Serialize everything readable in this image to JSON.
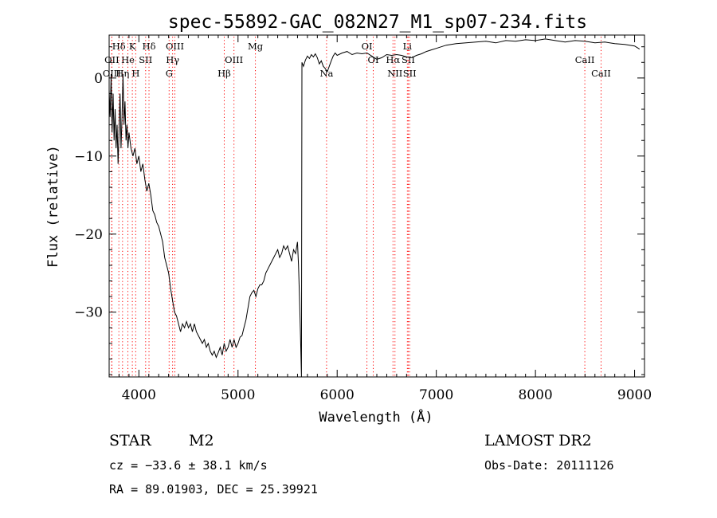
{
  "chart_data": {
    "type": "line",
    "title": "spec-55892-GAC_082N27_M1_sp07-234.fits",
    "xlabel": "Wavelength (Å)",
    "ylabel": "Flux (relative)",
    "xlim": [
      3700,
      9100
    ],
    "ylim": [
      -38.3,
      5.5
    ],
    "x_ticks": [
      4000,
      5000,
      6000,
      7000,
      8000,
      9000
    ],
    "x_tick_labels": [
      "4000",
      "5000",
      "6000",
      "7000",
      "8000",
      "9000"
    ],
    "y_ticks": [
      0,
      -10,
      -20,
      -30
    ],
    "y_tick_labels": [
      "0",
      "−10",
      "−20",
      "−30"
    ],
    "grid": false,
    "legend": "none",
    "series": [
      {
        "color": "#000000",
        "points": [
          [
            3700,
            -1.5
          ],
          [
            3710,
            -5
          ],
          [
            3720,
            0.5
          ],
          [
            3730,
            -7
          ],
          [
            3740,
            -2
          ],
          [
            3750,
            -8
          ],
          [
            3760,
            -4
          ],
          [
            3770,
            -9
          ],
          [
            3780,
            -6
          ],
          [
            3790,
            -11
          ],
          [
            3800,
            -7
          ],
          [
            3810,
            -2
          ],
          [
            3820,
            -9
          ],
          [
            3830,
            -5
          ],
          [
            3840,
            0.5
          ],
          [
            3850,
            -6
          ],
          [
            3860,
            -3
          ],
          [
            3870,
            -8
          ],
          [
            3880,
            -6
          ],
          [
            3890,
            -9
          ],
          [
            3900,
            -7
          ],
          [
            3920,
            -9
          ],
          [
            3940,
            -10
          ],
          [
            3960,
            -9
          ],
          [
            3980,
            -11
          ],
          [
            4000,
            -10
          ],
          [
            4020,
            -12
          ],
          [
            4040,
            -11
          ],
          [
            4060,
            -13
          ],
          [
            4080,
            -14.5
          ],
          [
            4100,
            -13.5
          ],
          [
            4120,
            -15
          ],
          [
            4140,
            -17
          ],
          [
            4160,
            -17.5
          ],
          [
            4180,
            -18.5
          ],
          [
            4200,
            -19
          ],
          [
            4220,
            -20
          ],
          [
            4240,
            -21
          ],
          [
            4260,
            -23
          ],
          [
            4280,
            -24
          ],
          [
            4300,
            -25
          ],
          [
            4320,
            -27
          ],
          [
            4340,
            -28.5
          ],
          [
            4360,
            -30
          ],
          [
            4380,
            -30.5
          ],
          [
            4400,
            -31.5
          ],
          [
            4420,
            -32.5
          ],
          [
            4440,
            -31.5
          ],
          [
            4460,
            -32
          ],
          [
            4480,
            -31.2
          ],
          [
            4500,
            -32
          ],
          [
            4520,
            -31.5
          ],
          [
            4540,
            -32.5
          ],
          [
            4560,
            -31.5
          ],
          [
            4580,
            -32.5
          ],
          [
            4600,
            -33
          ],
          [
            4620,
            -33.5
          ],
          [
            4640,
            -34
          ],
          [
            4660,
            -33.5
          ],
          [
            4680,
            -34.5
          ],
          [
            4700,
            -34
          ],
          [
            4720,
            -35
          ],
          [
            4740,
            -35.5
          ],
          [
            4760,
            -35
          ],
          [
            4780,
            -35.8
          ],
          [
            4800,
            -35.2
          ],
          [
            4820,
            -34.5
          ],
          [
            4840,
            -35.5
          ],
          [
            4860,
            -34
          ],
          [
            4880,
            -35
          ],
          [
            4900,
            -34.5
          ],
          [
            4920,
            -33.5
          ],
          [
            4940,
            -34.5
          ],
          [
            4960,
            -33.5
          ],
          [
            4980,
            -34.5
          ],
          [
            5000,
            -34
          ],
          [
            5020,
            -33.2
          ],
          [
            5040,
            -33
          ],
          [
            5060,
            -32
          ],
          [
            5080,
            -31
          ],
          [
            5100,
            -29.5
          ],
          [
            5120,
            -28
          ],
          [
            5140,
            -27.5
          ],
          [
            5160,
            -27.2
          ],
          [
            5180,
            -28
          ],
          [
            5200,
            -27
          ],
          [
            5220,
            -26.5
          ],
          [
            5240,
            -26.5
          ],
          [
            5260,
            -26
          ],
          [
            5280,
            -25
          ],
          [
            5300,
            -24.5
          ],
          [
            5320,
            -24
          ],
          [
            5340,
            -23.5
          ],
          [
            5360,
            -23
          ],
          [
            5380,
            -22.5
          ],
          [
            5400,
            -22
          ],
          [
            5420,
            -23
          ],
          [
            5440,
            -22.5
          ],
          [
            5460,
            -21.5
          ],
          [
            5480,
            -22
          ],
          [
            5500,
            -21.5
          ],
          [
            5520,
            -22.5
          ],
          [
            5540,
            -23.5
          ],
          [
            5560,
            -22
          ],
          [
            5580,
            -22.5
          ],
          [
            5600,
            -21
          ],
          [
            5610,
            -24
          ],
          [
            5620,
            -28
          ],
          [
            5630,
            -33
          ],
          [
            5640,
            -38.3
          ],
          [
            5645,
            2
          ],
          [
            5660,
            1.5
          ],
          [
            5680,
            2.3
          ],
          [
            5700,
            2.8
          ],
          [
            5720,
            2.5
          ],
          [
            5740,
            3
          ],
          [
            5760,
            2.7
          ],
          [
            5780,
            3.1
          ],
          [
            5800,
            2.6
          ],
          [
            5820,
            1.8
          ],
          [
            5840,
            2.2
          ],
          [
            5860,
            1.5
          ],
          [
            5880,
            1.2
          ],
          [
            5900,
            0.8
          ],
          [
            5920,
            1.5
          ],
          [
            5940,
            2.2
          ],
          [
            5960,
            2.8
          ],
          [
            5980,
            3.2
          ],
          [
            6000,
            2.9
          ],
          [
            6050,
            3.2
          ],
          [
            6100,
            3.4
          ],
          [
            6150,
            3.0
          ],
          [
            6200,
            3.2
          ],
          [
            6250,
            3.1
          ],
          [
            6300,
            3.2
          ],
          [
            6350,
            2.8
          ],
          [
            6400,
            2.4
          ],
          [
            6450,
            2.6
          ],
          [
            6500,
            3.0
          ],
          [
            6550,
            2.9
          ],
          [
            6600,
            3.0
          ],
          [
            6650,
            2.9
          ],
          [
            6700,
            2.7
          ],
          [
            6750,
            2.6
          ],
          [
            6800,
            2.9
          ],
          [
            6850,
            3.1
          ],
          [
            6900,
            3.4
          ],
          [
            6950,
            3.6
          ],
          [
            7000,
            3.8
          ],
          [
            7100,
            4.2
          ],
          [
            7200,
            4.4
          ],
          [
            7300,
            4.5
          ],
          [
            7400,
            4.6
          ],
          [
            7500,
            4.7
          ],
          [
            7600,
            4.5
          ],
          [
            7700,
            4.8
          ],
          [
            7800,
            4.7
          ],
          [
            7900,
            4.9
          ],
          [
            8000,
            4.8
          ],
          [
            8100,
            5.0
          ],
          [
            8200,
            4.8
          ],
          [
            8300,
            4.6
          ],
          [
            8400,
            4.8
          ],
          [
            8500,
            4.7
          ],
          [
            8600,
            4.5
          ],
          [
            8700,
            4.6
          ],
          [
            8800,
            4.4
          ],
          [
            8900,
            4.3
          ],
          [
            9000,
            4.1
          ],
          [
            9050,
            3.7
          ]
        ]
      }
    ],
    "line_markers": [
      {
        "label": "Hδ",
        "wavelength": 3798,
        "row": 1,
        "color": "#ff0000"
      },
      {
        "label": "K",
        "wavelength": 3934,
        "row": 1,
        "color": "#ff0000"
      },
      {
        "label": "Hδ",
        "wavelength": 4102,
        "row": 1,
        "color": "#ff0000"
      },
      {
        "label": "OIII",
        "wavelength": 4363,
        "row": 1,
        "color": "#ff0000"
      },
      {
        "label": "Mg",
        "wavelength": 5175,
        "row": 1,
        "color": "#ff0000"
      },
      {
        "label": "OI",
        "wavelength": 6300,
        "row": 1,
        "color": "#ff0000"
      },
      {
        "label": "Li",
        "wavelength": 6708,
        "row": 1,
        "color": "#ff0000"
      },
      {
        "label": "OII",
        "wavelength": 3727,
        "row": 2,
        "color": "#ff0000"
      },
      {
        "label": "He",
        "wavelength": 3889,
        "row": 2,
        "color": "#ff0000"
      },
      {
        "label": "SII",
        "wavelength": 4068,
        "row": 2,
        "color": "#ff0000"
      },
      {
        "label": "Hγ",
        "wavelength": 4340,
        "row": 2,
        "color": "#ff0000"
      },
      {
        "label": "OIII",
        "wavelength": 4959,
        "row": 2,
        "color": "#ff0000"
      },
      {
        "label": "OI",
        "wavelength": 6364,
        "row": 2,
        "color": "#ff0000"
      },
      {
        "label": "Hα",
        "wavelength": 6563,
        "row": 2,
        "color": "#ff0000"
      },
      {
        "label": "SII",
        "wavelength": 6717,
        "row": 2,
        "color": "#ff0000"
      },
      {
        "label": "CaII",
        "wavelength": 8498,
        "row": 2,
        "color": "#ff0000"
      },
      {
        "label": "OIII",
        "wavelength": 3727,
        "row": 3,
        "color": "#ff0000"
      },
      {
        "label": "Hη",
        "wavelength": 3835,
        "row": 3,
        "color": "#ff0000"
      },
      {
        "label": "H",
        "wavelength": 3968,
        "row": 3,
        "color": "#ff0000"
      },
      {
        "label": "G",
        "wavelength": 4305,
        "row": 3,
        "color": "#ff0000"
      },
      {
        "label": "Hβ",
        "wavelength": 4861,
        "row": 3,
        "color": "#ff0000"
      },
      {
        "label": "Na",
        "wavelength": 5893,
        "row": 3,
        "color": "#ff0000"
      },
      {
        "label": "NII",
        "wavelength": 6583,
        "row": 3,
        "color": "#ff0000"
      },
      {
        "label": "SII",
        "wavelength": 6731,
        "row": 3,
        "color": "#ff0000"
      },
      {
        "label": "CaII",
        "wavelength": 8662,
        "row": 3,
        "color": "#ff0000"
      }
    ]
  },
  "info": {
    "object_class": "STAR",
    "subclass": "M2",
    "redshift": "cz = −33.6 ± 38.1 km/s",
    "coords": "RA =  89.01903, DEC =  25.39921",
    "survey": "LAMOST DR2",
    "obs_date": "Obs-Date: 20111126"
  }
}
